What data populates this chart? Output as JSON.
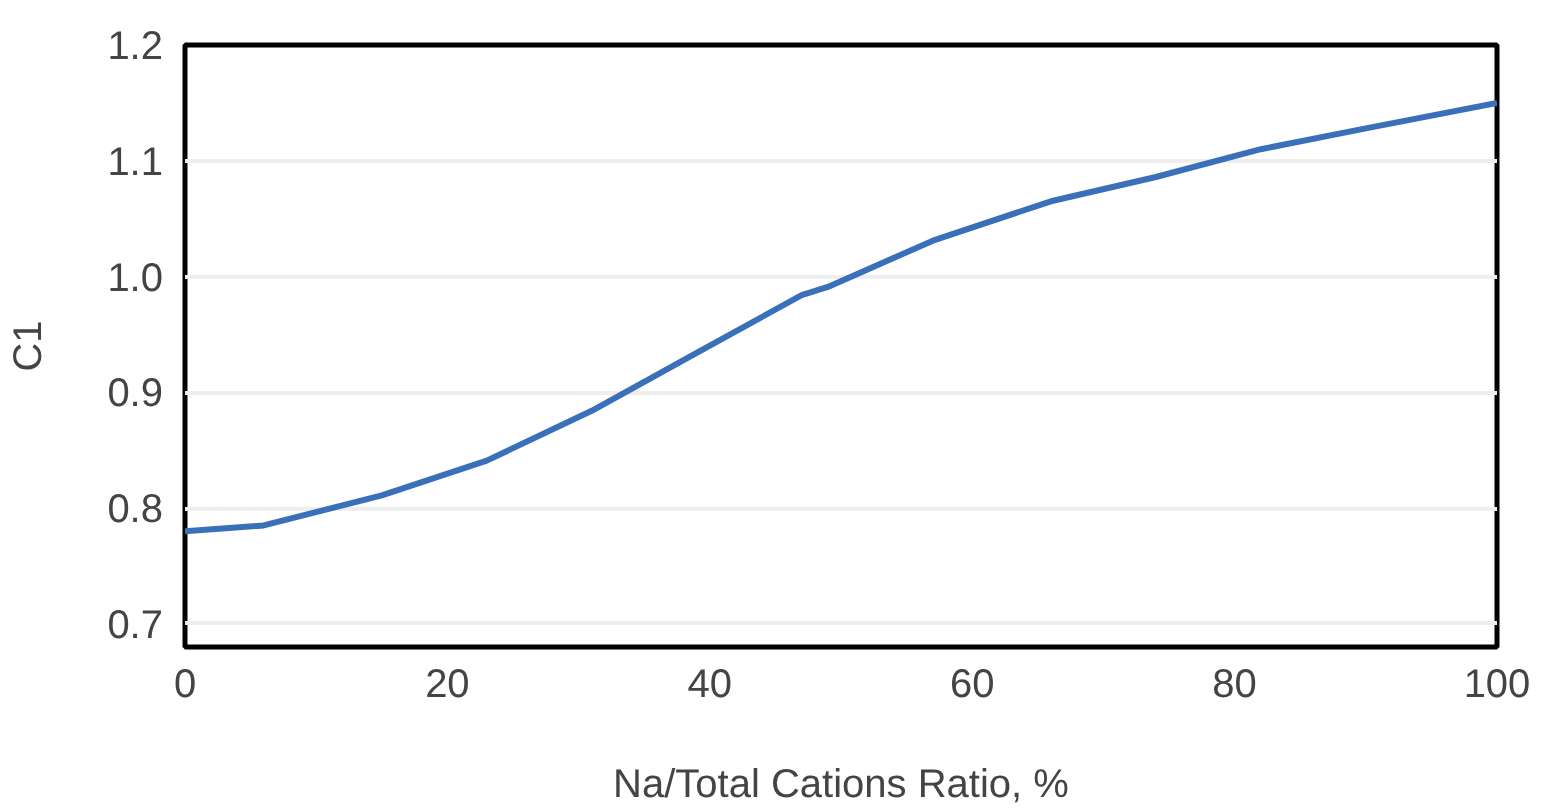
{
  "chart_data": {
    "type": "line",
    "xlabel": "Na/Total Cations Ratio, %",
    "ylabel": "C1",
    "x": [
      0,
      6,
      15,
      23,
      31,
      39,
      47,
      49,
      57,
      66,
      74,
      82,
      90,
      100
    ],
    "series": [
      {
        "color": "#3a6fba",
        "values": [
          0.78,
          0.785,
          0.811,
          0.841,
          0.884,
          0.934,
          0.984,
          0.991,
          1.031,
          1.065,
          1.086,
          1.11,
          1.128,
          1.15
        ]
      }
    ],
    "xlim": [
      0,
      100
    ],
    "ylim": [
      0.68,
      1.2
    ],
    "xticks": [
      0,
      20,
      40,
      60,
      80,
      100
    ],
    "yticks": [
      {
        "value": 0.7,
        "label": "0.7"
      },
      {
        "value": 0.8,
        "label": "0.8"
      },
      {
        "value": 0.9,
        "label": "0.9"
      },
      {
        "value": 1.0,
        "label": "1.0"
      },
      {
        "value": 1.1,
        "label": "1.1"
      },
      {
        "value": 1.2,
        "label": "1.2"
      }
    ],
    "grid": "y",
    "line_style": "solid"
  }
}
